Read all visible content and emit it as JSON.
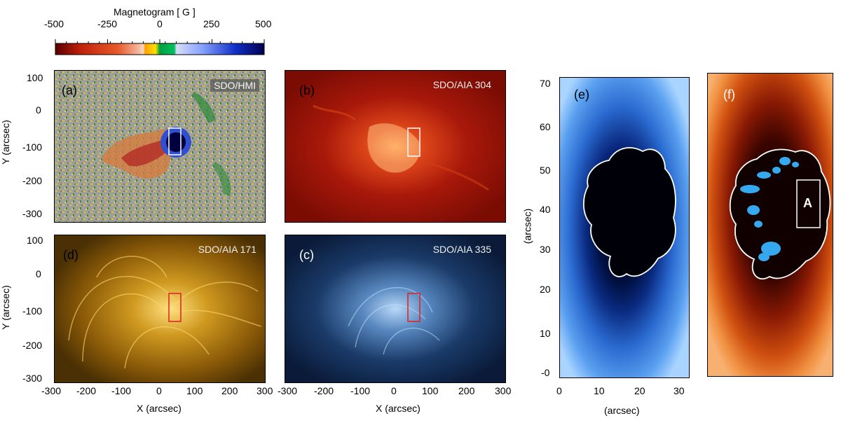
{
  "colorbar": {
    "title": "Magnetogram [ G ]",
    "ticks": [
      "-500",
      "-250",
      "0",
      "250",
      "500"
    ],
    "colors": [
      "#5a0000",
      "#c0200a",
      "#e85a2a",
      "#f4b8a0",
      "#f8e0d0",
      "#ffd000",
      "#00b050",
      "#c8d4ff",
      "#6a86ff",
      "#1030c0",
      "#000060"
    ]
  },
  "panels": {
    "a": {
      "tag": "(a)",
      "instrument": "SDO/HMI"
    },
    "b": {
      "tag": "(b)",
      "instrument": "SDO/AIA 304"
    },
    "d": {
      "tag": "(d)",
      "instrument": "SDO/AIA 171"
    },
    "c": {
      "tag": "(c)",
      "instrument": "SDO/AIA 335"
    },
    "e": {
      "tag": "(e)"
    },
    "f": {
      "tag": "(f)",
      "box_label": "A"
    }
  },
  "axes": {
    "left_ylabel": "Y (arcsec)",
    "xlabel": "X (arcsec)",
    "xticks": [
      "-300",
      "-200",
      "-100",
      "0",
      "100",
      "200",
      "300"
    ],
    "yticks": [
      "100",
      "0",
      "-100",
      "-200",
      "-300"
    ],
    "e_ylabel": "(arcsec)",
    "e_xlabel": "(arcsec)",
    "e_yticks": [
      "70",
      "60",
      "50",
      "40",
      "30",
      "20",
      "10",
      "-0"
    ],
    "e_xticks": [
      "0",
      "10",
      "20",
      "30"
    ]
  },
  "chart_data": {
    "type": "heatmap",
    "title": "Magnetogram [ G ]",
    "colorbar_range": [
      -500,
      500
    ],
    "panels": [
      {
        "id": "a",
        "label": "SDO/HMI",
        "xlim": [
          -300,
          300
        ],
        "ylim": [
          -300,
          100
        ]
      },
      {
        "id": "b",
        "label": "SDO/AIA 304",
        "xlim": [
          -300,
          300
        ],
        "ylim": [
          -300,
          100
        ]
      },
      {
        "id": "d",
        "label": "SDO/AIA 171",
        "xlim": [
          -300,
          300
        ],
        "ylim": [
          -300,
          100
        ]
      },
      {
        "id": "c",
        "label": "SDO/AIA 335",
        "xlim": [
          -300,
          300
        ],
        "ylim": [
          -300,
          100
        ]
      },
      {
        "id": "e",
        "xlim": [
          0,
          32
        ],
        "ylim": [
          0,
          72
        ]
      },
      {
        "id": "f",
        "xlim": [
          0,
          32
        ],
        "ylim": [
          0,
          72
        ]
      }
    ],
    "region_box_arcsec": {
      "x": [
        30,
        60
      ],
      "y": [
        -130,
        -50
      ]
    },
    "xlabel": "X (arcsec)",
    "ylabel": "Y (arcsec)"
  }
}
